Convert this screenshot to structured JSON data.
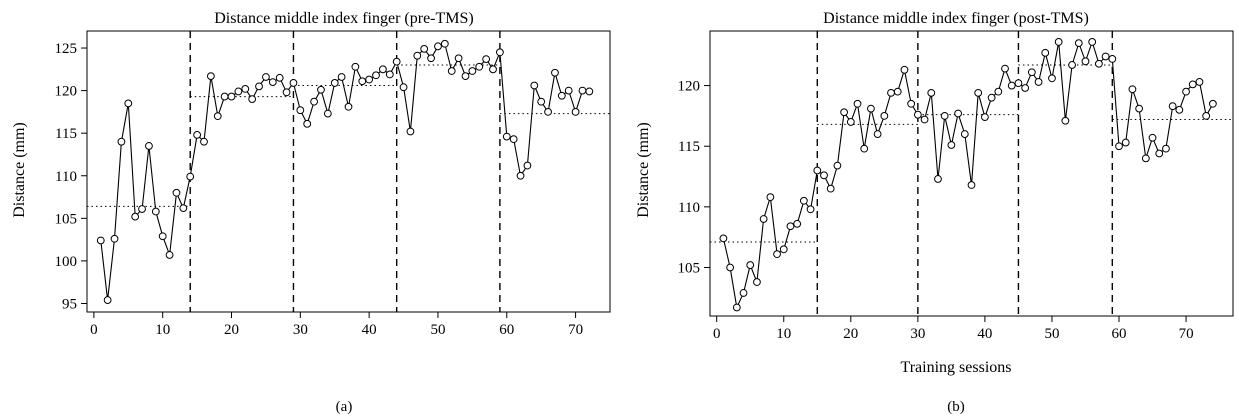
{
  "chart_data": [
    {
      "type": "line",
      "title": "Distance middle index finger (pre-TMS)",
      "xlabel": "",
      "ylabel": "Distance (mm)",
      "subfigure_label": "(a)",
      "xlim": [
        -1,
        75
      ],
      "ylim": [
        94,
        127
      ],
      "xticks": [
        0,
        10,
        20,
        30,
        40,
        50,
        60,
        70
      ],
      "yticks": [
        95,
        100,
        105,
        110,
        115,
        120,
        125
      ],
      "phase_boundaries": [
        14,
        29,
        44,
        59
      ],
      "phase_means": [
        {
          "x_start": -1,
          "x_end": 14,
          "y": 106.4
        },
        {
          "x_start": 14,
          "x_end": 29,
          "y": 119.3
        },
        {
          "x_start": 29,
          "x_end": 44,
          "y": 120.6
        },
        {
          "x_start": 44,
          "x_end": 59,
          "y": 123.0
        },
        {
          "x_start": 59,
          "x_end": 75,
          "y": 117.3
        }
      ],
      "series": [
        {
          "x": [
            1,
            2,
            3,
            4,
            5,
            6,
            7,
            8,
            9,
            10,
            11,
            12,
            13,
            14,
            15,
            16,
            17,
            18,
            19,
            20,
            21,
            22,
            23,
            24,
            25,
            26,
            27,
            28,
            29,
            30,
            31,
            32,
            33,
            34,
            35,
            36,
            37,
            38,
            39,
            40,
            41,
            42,
            43,
            44,
            45,
            46,
            47,
            48,
            49,
            50,
            51,
            52,
            53,
            54,
            55,
            56,
            57,
            58,
            59,
            60,
            61,
            62,
            63,
            64,
            65,
            66,
            67,
            68,
            69,
            70,
            71,
            72
          ],
          "y": [
            102.4,
            95.4,
            102.6,
            114.0,
            118.5,
            105.2,
            106.1,
            113.5,
            105.8,
            102.9,
            100.7,
            108.0,
            106.2,
            109.9,
            114.8,
            114.0,
            121.7,
            117.0,
            119.3,
            119.3,
            119.9,
            120.2,
            119.0,
            120.5,
            121.6,
            121.0,
            121.5,
            119.8,
            120.9,
            117.7,
            116.1,
            118.7,
            120.1,
            117.3,
            120.9,
            121.6,
            118.1,
            122.8,
            121.1,
            121.3,
            121.8,
            122.5,
            121.9,
            123.4,
            120.4,
            115.2,
            124.1,
            124.9,
            123.8,
            125.2,
            125.5,
            122.3,
            123.8,
            121.7,
            122.3,
            122.8,
            123.7,
            122.5,
            124.5,
            114.6,
            114.3,
            110.0,
            111.2,
            120.6,
            118.7,
            117.5,
            122.1,
            119.4,
            120.0,
            117.5,
            120.0,
            119.9
          ]
        }
      ]
    },
    {
      "type": "line",
      "title": "Distance middle index finger (post-TMS)",
      "xlabel": "Training sessions",
      "ylabel": "Distance (mm)",
      "subfigure_label": "(b)",
      "xlim": [
        -1,
        77
      ],
      "ylim": [
        101,
        124.5
      ],
      "xticks": [
        0,
        10,
        20,
        30,
        40,
        50,
        60,
        70
      ],
      "yticks": [
        105,
        110,
        115,
        120
      ],
      "phase_boundaries": [
        15,
        30,
        45,
        59
      ],
      "phase_means": [
        {
          "x_start": -1,
          "x_end": 15,
          "y": 107.1
        },
        {
          "x_start": 15,
          "x_end": 30,
          "y": 116.8
        },
        {
          "x_start": 30,
          "x_end": 45,
          "y": 117.6
        },
        {
          "x_start": 45,
          "x_end": 59,
          "y": 121.7
        },
        {
          "x_start": 59,
          "x_end": 77,
          "y": 117.2
        }
      ],
      "series": [
        {
          "x": [
            1,
            2,
            3,
            4,
            5,
            6,
            7,
            8,
            9,
            10,
            11,
            12,
            13,
            14,
            15,
            16,
            17,
            18,
            19,
            20,
            21,
            22,
            23,
            24,
            25,
            26,
            27,
            28,
            29,
            30,
            31,
            32,
            33,
            34,
            35,
            36,
            37,
            38,
            39,
            40,
            41,
            42,
            43,
            44,
            45,
            46,
            47,
            48,
            49,
            50,
            51,
            52,
            53,
            54,
            55,
            56,
            57,
            58,
            59,
            60,
            61,
            62,
            63,
            64,
            65,
            66,
            67,
            68,
            69,
            70,
            71,
            72,
            73,
            74
          ],
          "y": [
            107.4,
            105.0,
            101.7,
            102.9,
            105.2,
            103.8,
            109.0,
            110.8,
            106.1,
            106.5,
            108.4,
            108.6,
            110.5,
            109.8,
            113.0,
            112.6,
            111.5,
            113.4,
            117.8,
            117.0,
            118.5,
            114.8,
            118.1,
            116.0,
            117.5,
            119.4,
            119.5,
            121.3,
            118.5,
            117.6,
            117.2,
            119.4,
            112.3,
            117.5,
            115.1,
            117.7,
            116.0,
            111.8,
            119.4,
            117.4,
            119.0,
            119.5,
            121.4,
            120.0,
            120.2,
            119.8,
            121.1,
            120.3,
            122.7,
            120.6,
            123.6,
            117.1,
            121.7,
            123.5,
            122.0,
            123.6,
            121.8,
            122.4,
            122.2,
            115.0,
            115.3,
            119.7,
            118.1,
            114.0,
            115.7,
            114.4,
            114.8,
            118.3,
            118.0,
            119.5,
            120.1,
            120.3,
            117.5,
            118.5
          ]
        }
      ]
    }
  ]
}
